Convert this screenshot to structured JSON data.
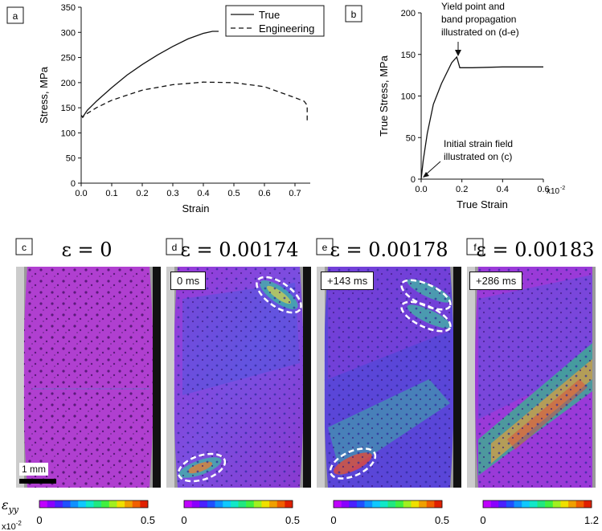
{
  "panels": {
    "a": {
      "label": "a",
      "chart_data": {
        "type": "line",
        "xlabel": "Strain",
        "ylabel": "Stress, MPa",
        "xlim": [
          0.0,
          0.75
        ],
        "ylim": [
          0,
          350
        ],
        "xticks": [
          "0.0",
          "0.1",
          "0.2",
          "0.3",
          "0.4",
          "0.5",
          "0.6",
          "0.7"
        ],
        "yticks": [
          "0",
          "50",
          "100",
          "150",
          "200",
          "250",
          "300",
          "350"
        ],
        "legend_position": "top-right",
        "series": [
          {
            "name": "True",
            "style": "solid",
            "x": [
              0.0,
              0.005,
              0.01,
              0.02,
              0.05,
              0.1,
              0.15,
              0.2,
              0.25,
              0.3,
              0.35,
              0.4,
              0.43,
              0.45
            ],
            "y": [
              135,
              131,
              136,
              145,
              163,
              190,
              215,
              236,
              255,
              272,
              287,
              298,
              302,
              302
            ]
          },
          {
            "name": "Engineering",
            "style": "dashed",
            "x": [
              0.0,
              0.005,
              0.01,
              0.05,
              0.1,
              0.2,
              0.3,
              0.4,
              0.5,
              0.6,
              0.7,
              0.73,
              0.74,
              0.74
            ],
            "y": [
              135,
              131,
              135,
              150,
              165,
              185,
              196,
              201,
              200,
              192,
              170,
              163,
              155,
              122
            ]
          }
        ]
      }
    },
    "b": {
      "label": "b",
      "chart_data": {
        "type": "line",
        "xlabel": "True Strain",
        "ylabel": "True Stress, MPa",
        "xlim": [
          0,
          0.6
        ],
        "ylim": [
          0,
          200
        ],
        "xticks": [
          "0.0",
          "0.2",
          "0.4",
          "0.6"
        ],
        "x_multiplier": "x10",
        "x_multiplier_exp": "-2",
        "yticks": [
          "0",
          "50",
          "100",
          "150",
          "200"
        ],
        "series": [
          {
            "name": "True",
            "x": [
              0,
              0.01,
              0.03,
              0.06,
              0.1,
              0.15,
              0.175,
              0.19,
              0.25,
              0.4,
              0.6
            ],
            "y": [
              0,
              22,
              55,
              90,
              115,
              140,
              147,
              134,
              134,
              135,
              135
            ]
          }
        ],
        "annotations": [
          "Yield point and",
          "band propagation",
          "illustrated on (d-e)",
          "Initial strain field",
          "illustrated on (c)"
        ]
      }
    }
  },
  "images": [
    {
      "label": "c",
      "title": "ε = 0",
      "stamp": null,
      "scale_bar": "1 mm",
      "colorbar": {
        "min": "0",
        "max": "0.5"
      }
    },
    {
      "label": "d",
      "title": "ε = 0.00174",
      "stamp": "0 ms",
      "colorbar": {
        "min": "0",
        "max": "0.5"
      }
    },
    {
      "label": "e",
      "title": "ε = 0.00178",
      "stamp": "+143 ms",
      "colorbar": {
        "min": "0",
        "max": "0.5"
      }
    },
    {
      "label": "f",
      "title": "ε = 0.00183",
      "stamp": "+286 ms",
      "colorbar": {
        "min": "0",
        "max": "1.2"
      }
    }
  ],
  "colorbar_symbol": "ε",
  "colorbar_symbol_sub": "yy",
  "colorbar_unit": "x10",
  "colorbar_unit_exp": "-2"
}
